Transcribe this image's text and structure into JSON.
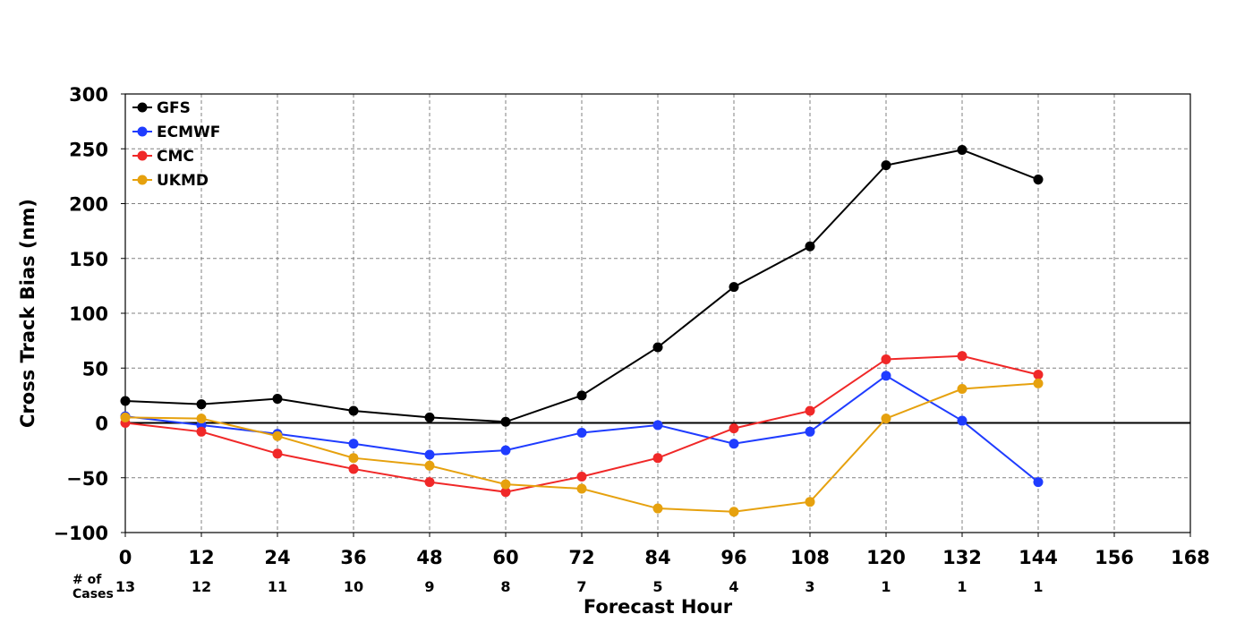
{
  "chart_data": {
    "type": "line",
    "xlabel": "Forecast Hour",
    "ylabel": "Cross Track Bias (nm)",
    "xlim": [
      0,
      168
    ],
    "ylim": [
      -100,
      300
    ],
    "xticks": [
      0,
      12,
      24,
      36,
      48,
      60,
      72,
      84,
      96,
      108,
      120,
      132,
      144,
      156,
      168
    ],
    "yticks": [
      -100,
      -50,
      0,
      50,
      100,
      150,
      200,
      250,
      300
    ],
    "ytick_labels": [
      "−100",
      "−50",
      "0",
      "50",
      "100",
      "150",
      "200",
      "250",
      "300"
    ],
    "grid": true,
    "legend_position": "top-left",
    "x": [
      0,
      12,
      24,
      36,
      48,
      60,
      72,
      84,
      96,
      108,
      120,
      132,
      144
    ],
    "series": [
      {
        "name": "GFS",
        "color": "#000000",
        "values": [
          20,
          17,
          22,
          11,
          5,
          1,
          25,
          69,
          124,
          161,
          235,
          249,
          222
        ]
      },
      {
        "name": "ECMWF",
        "color": "#1f3cff",
        "values": [
          6,
          -2,
          -10,
          -19,
          -29,
          -25,
          -9,
          -2,
          -19,
          -8,
          43,
          2,
          -54
        ]
      },
      {
        "name": "CMC",
        "color": "#f02828",
        "values": [
          0,
          -8,
          -28,
          -42,
          -54,
          -63,
          -49,
          -32,
          -5,
          11,
          58,
          61,
          44
        ]
      },
      {
        "name": "UKMD",
        "color": "#e6a10e",
        "values": [
          5,
          4,
          -12,
          -32,
          -39,
          -56,
          -60,
          -78,
          -81,
          -72,
          4,
          31,
          36
        ]
      }
    ],
    "cases_label": "# of\nCases",
    "cases_label_lines": [
      "# of",
      "Cases"
    ],
    "cases_x": [
      0,
      12,
      24,
      36,
      48,
      60,
      72,
      84,
      96,
      108,
      120,
      132,
      144
    ],
    "cases": [
      "13",
      "12",
      "11",
      "10",
      "9",
      "8",
      "7",
      "5",
      "4",
      "3",
      "1",
      "1",
      "1"
    ]
  }
}
